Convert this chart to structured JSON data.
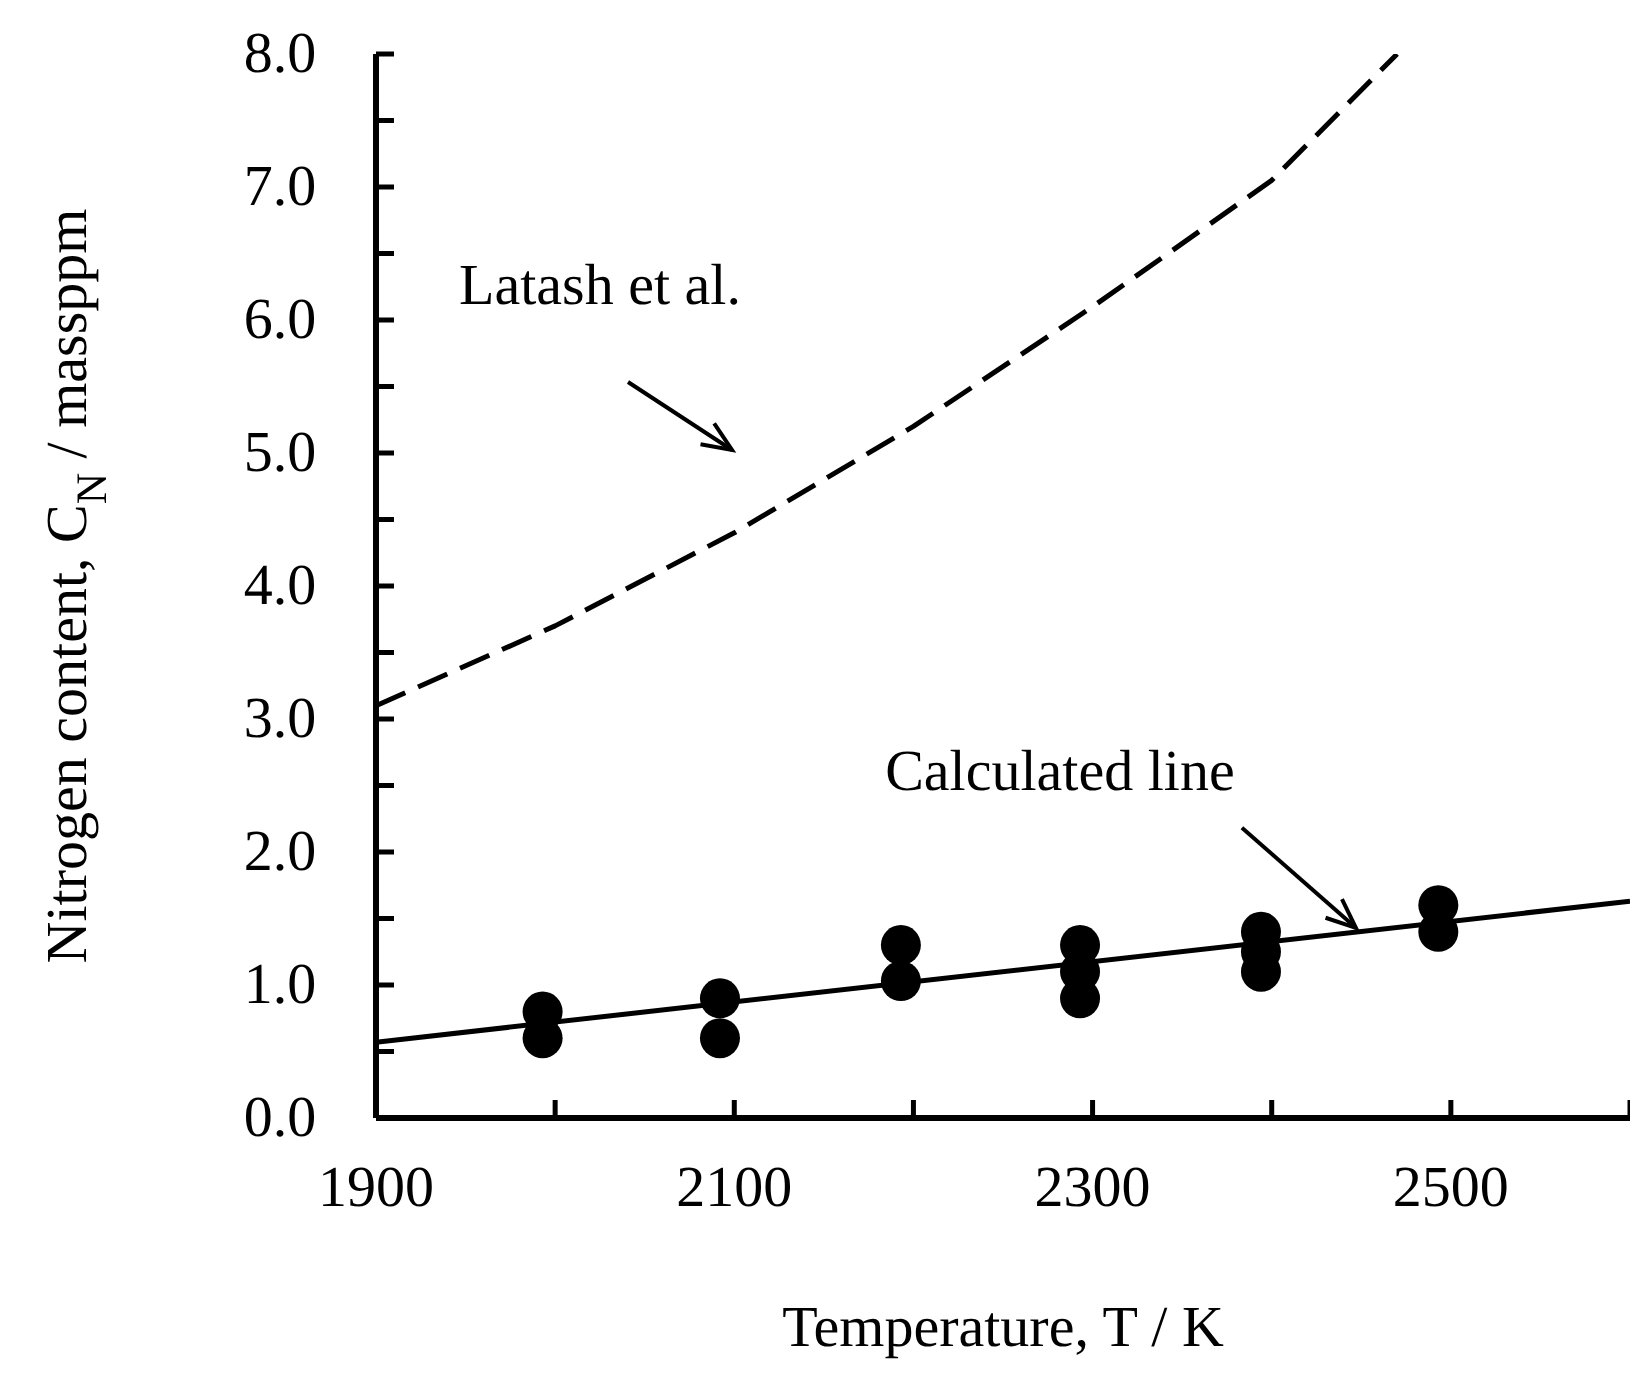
{
  "chart_data": {
    "type": "scatter",
    "xlabel": "Temperature, T / K",
    "ylabel": "Nitrogen content, C$_{N}$ / massppm",
    "xlim": [
      1900,
      2600
    ],
    "xticks": [
      1900,
      {
        "value": 2000,
        "label": null
      },
      2100,
      {
        "value": 2200,
        "label": null
      },
      2300,
      {
        "value": 2400,
        "label": null
      },
      2500,
      {
        "value": 2600,
        "label": null
      }
    ],
    "ylim": [
      0,
      8
    ],
    "yticks": [
      "0.0",
      {
        "value": 0.5,
        "label": null
      },
      {
        "value": 1,
        "label": "1.0"
      },
      {
        "value": 1.5,
        "label": null
      },
      {
        "value": 2,
        "label": "2.0"
      },
      {
        "value": 2.5,
        "label": null
      },
      {
        "value": 3,
        "label": "3.0"
      },
      {
        "value": 3.5,
        "label": null
      },
      {
        "value": 4,
        "label": "4.0"
      },
      {
        "value": 4.5,
        "label": null
      },
      {
        "value": 5,
        "label": "5.0"
      },
      {
        "value": 5.5,
        "label": null
      },
      {
        "value": 6,
        "label": "6.0"
      },
      {
        "value": 6.5,
        "label": null
      },
      {
        "value": 7,
        "label": "7.0"
      },
      {
        "value": 7.5,
        "label": null
      },
      {
        "value": 8,
        "label": "8.0"
      }
    ],
    "grid": false,
    "legend": false,
    "series": [
      {
        "color": "#000000",
        "marker": "circle",
        "x": [
          1993,
          1993,
          2092,
          2092,
          2193,
          2193,
          2293,
          2293,
          2293,
          2394,
          2394,
          2394,
          2493,
          2493
        ],
        "values": [
          0.8,
          0.6,
          0.9,
          0.6,
          1.3,
          1.03,
          1.3,
          1.1,
          0.9,
          1.4,
          1.25,
          1.1,
          1.6,
          1.4
        ]
      },
      {
        "type": "line",
        "color": "#000000",
        "marker": "none",
        "line_style": "solid",
        "x": [
          1900,
          2600
        ],
        "values": [
          0.57,
          1.63
        ]
      },
      {
        "type": "line",
        "color": "#000000",
        "marker": "none",
        "line_style": "dashed",
        "x": [
          1900,
          2000,
          2100,
          2200,
          2300,
          2400,
          2470
        ],
        "values": [
          3.1,
          3.7,
          4.4,
          5.2,
          6.1,
          7.05,
          8.0
        ]
      }
    ],
    "annotations": [
      "Latash et al.",
      {
        "text": "Calculated line",
        "x": 2447,
        "y": 1.43
      }
    ]
  }
}
